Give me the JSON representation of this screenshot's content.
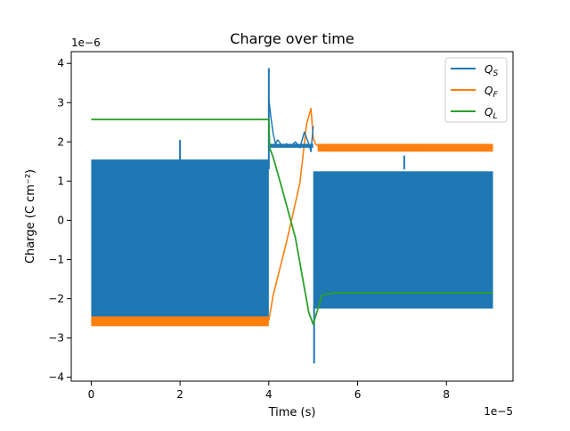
{
  "chart_data": {
    "type": "line",
    "title": "Charge over time",
    "xlabel": "Time (s)",
    "ylabel": "Charge (C cm⁻²)",
    "x_offset_label": "1e−5",
    "y_offset_label": "1e−6",
    "xlim": [
      -0.45,
      9.5
    ],
    "ylim": [
      -4.1,
      4.3
    ],
    "xticks": [
      0,
      2,
      4,
      6,
      8
    ],
    "yticks": [
      -4,
      -3,
      -2,
      -1,
      0,
      1,
      2,
      3,
      4
    ],
    "xtick_labels": [
      "0",
      "2",
      "4",
      "6",
      "8"
    ],
    "ytick_labels": [
      "−4",
      "−3",
      "−2",
      "−1",
      "0",
      "1",
      "2",
      "3",
      "4"
    ],
    "legend_position": "top-right",
    "series": [
      {
        "name": "Q_S",
        "color": "#1f77b4",
        "style": "oscillating-band",
        "segments": [
          {
            "x": [
              0.0,
              4.0
            ],
            "upper": 1.55,
            "lower": -2.45
          },
          {
            "x": [
              4.0,
              5.0
            ],
            "upper": 1.95,
            "lower": 1.85
          },
          {
            "x": [
              5.0,
              9.05
            ],
            "upper": 1.25,
            "lower": -2.25
          }
        ],
        "spikes": [
          {
            "x": 2.0,
            "y": 2.05
          },
          {
            "x": 4.0,
            "y": 3.88
          },
          {
            "x": 5.02,
            "y": -3.65
          },
          {
            "x": 7.05,
            "y": 1.65
          }
        ],
        "transition": {
          "x": [
            4.0,
            4.05,
            4.1,
            4.15,
            4.2,
            4.3,
            4.4,
            4.5,
            4.6,
            4.7,
            4.8,
            4.9,
            4.95,
            5.0
          ],
          "y": [
            3.1,
            2.6,
            2.2,
            1.95,
            2.05,
            1.9,
            1.95,
            1.9,
            2.0,
            1.85,
            2.25,
            1.95,
            1.75,
            2.4
          ]
        }
      },
      {
        "name": "Q_F",
        "color": "#ff7f0e",
        "style": "line-with-band",
        "x": [
          0.0,
          4.0,
          4.1,
          4.4,
          4.7,
          4.85,
          4.95,
          5.0,
          5.05,
          5.1,
          5.3,
          5.6,
          9.05
        ],
        "y": [
          -2.55,
          -2.55,
          -1.9,
          -0.55,
          0.95,
          2.45,
          2.85,
          2.1,
          1.95,
          1.9,
          1.85,
          1.85,
          1.85
        ],
        "bands": [
          {
            "x": [
              0.0,
              4.0
            ],
            "upper": -2.42,
            "lower": -2.7
          },
          {
            "x": [
              5.1,
              9.05
            ],
            "upper": 1.95,
            "lower": 1.75
          }
        ]
      },
      {
        "name": "Q_L",
        "color": "#2ca02c",
        "style": "line",
        "x": [
          0.0,
          4.0,
          4.02,
          4.1,
          4.3,
          4.6,
          4.9,
          5.0,
          5.2,
          5.5,
          9.05
        ],
        "y": [
          2.57,
          2.57,
          1.85,
          1.6,
          0.8,
          -0.45,
          -2.35,
          -2.65,
          -1.9,
          -1.85,
          -1.85
        ]
      }
    ]
  }
}
